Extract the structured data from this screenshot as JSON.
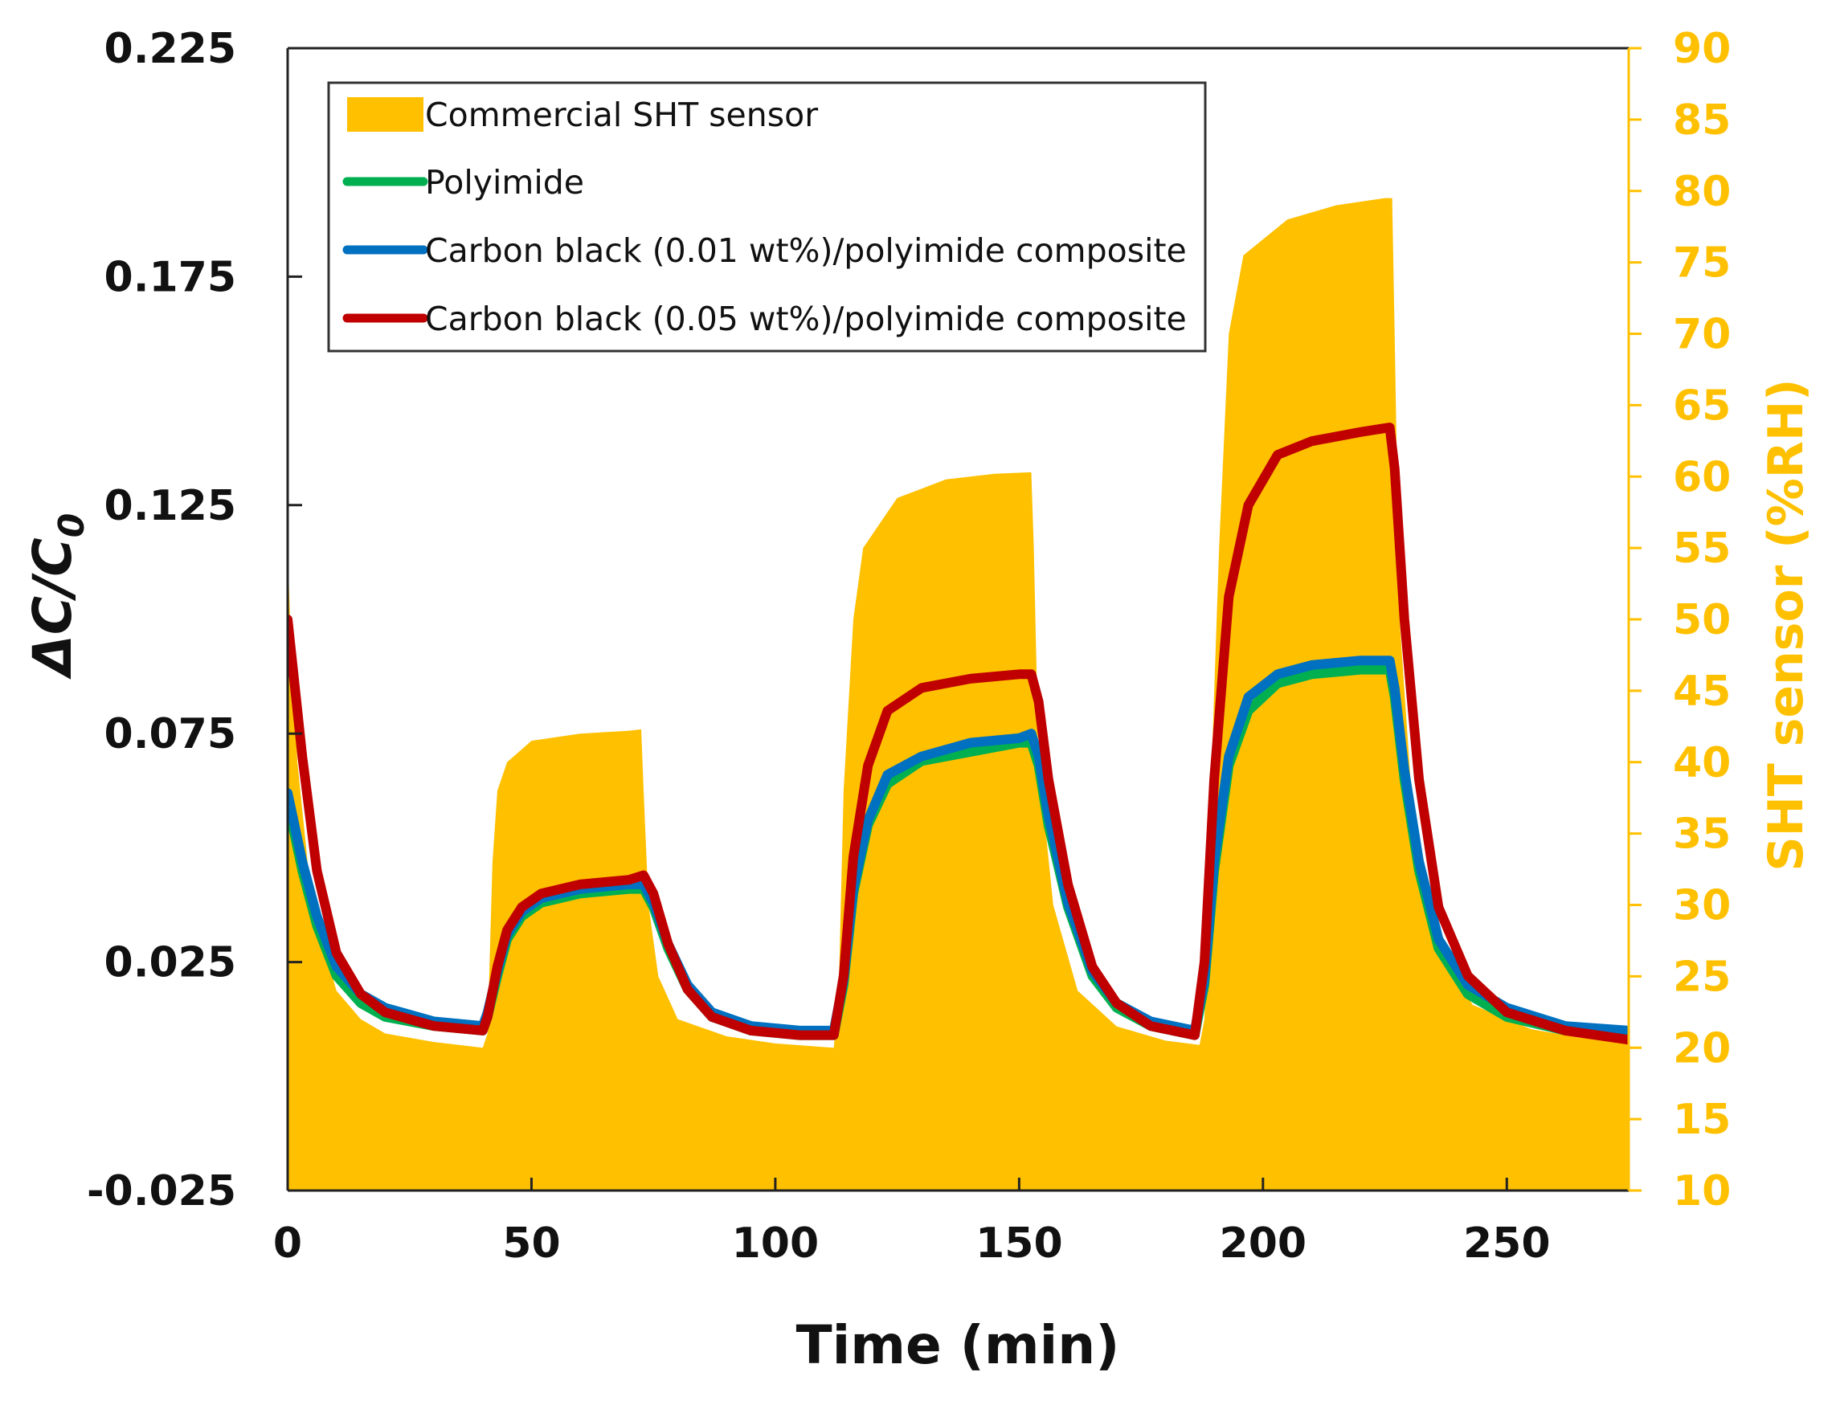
{
  "chart_data": {
    "type": "line+area",
    "xlabel": "Time (min)",
    "ylabel": "ΔC/C0",
    "ylabel_parts": {
      "delta": "Δ",
      "c": "C",
      "slash": "/",
      "c0": "C",
      "sub": "0"
    },
    "y2label": "SHT sensor (%RH)",
    "xlim": [
      0,
      275
    ],
    "ylim": [
      -0.025,
      0.225
    ],
    "y2lim": [
      10,
      90
    ],
    "xticks": [
      0,
      50,
      100,
      150,
      200,
      250
    ],
    "xtick_labels": [
      "0",
      "50",
      "100",
      "150",
      "200",
      "250"
    ],
    "yticks": [
      -0.025,
      0.025,
      0.075,
      0.125,
      0.175,
      0.225
    ],
    "ytick_labels": [
      "-0.025",
      "0.025",
      "0.075",
      "0.125",
      "0.175",
      "0.225"
    ],
    "y2ticks": [
      10,
      15,
      20,
      25,
      30,
      35,
      40,
      45,
      50,
      55,
      60,
      65,
      70,
      75,
      80,
      85,
      90
    ],
    "y2tick_labels": [
      "10",
      "15",
      "20",
      "25",
      "30",
      "35",
      "40",
      "45",
      "50",
      "55",
      "60",
      "65",
      "70",
      "75",
      "80",
      "85",
      "90"
    ],
    "legend_position": "top-left",
    "series": [
      {
        "name": "Commercial SHT sensor",
        "color": "#FFC000",
        "axis": "right",
        "kind": "area",
        "points": [
          [
            0,
            55
          ],
          [
            0.5,
            50
          ],
          [
            2,
            40
          ],
          [
            5,
            30
          ],
          [
            10,
            24
          ],
          [
            15,
            22
          ],
          [
            20,
            21
          ],
          [
            30,
            20.4
          ],
          [
            40,
            20
          ],
          [
            41,
            21
          ],
          [
            42,
            33
          ],
          [
            43,
            38
          ],
          [
            45,
            40
          ],
          [
            50,
            41.5
          ],
          [
            60,
            42
          ],
          [
            70,
            42.2
          ],
          [
            72.5,
            42.3
          ],
          [
            73,
            38
          ],
          [
            74,
            30
          ],
          [
            76,
            25
          ],
          [
            80,
            22
          ],
          [
            90,
            20.8
          ],
          [
            100,
            20.3
          ],
          [
            112,
            20
          ],
          [
            113,
            24
          ],
          [
            114,
            38
          ],
          [
            116,
            50
          ],
          [
            118,
            55
          ],
          [
            125,
            58.5
          ],
          [
            135,
            59.8
          ],
          [
            145,
            60.2
          ],
          [
            152.5,
            60.3
          ],
          [
            153,
            55
          ],
          [
            154,
            40
          ],
          [
            157,
            30
          ],
          [
            162,
            24
          ],
          [
            170,
            21.5
          ],
          [
            180,
            20.5
          ],
          [
            187,
            20.2
          ],
          [
            188,
            22
          ],
          [
            189,
            35
          ],
          [
            191,
            55
          ],
          [
            193,
            70
          ],
          [
            196,
            75.5
          ],
          [
            205,
            78
          ],
          [
            215,
            79
          ],
          [
            225,
            79.5
          ],
          [
            226.5,
            79.5
          ],
          [
            227,
            70
          ],
          [
            228,
            50
          ],
          [
            231,
            35
          ],
          [
            236,
            27
          ],
          [
            243,
            23
          ],
          [
            255,
            21.3
          ],
          [
            265,
            20.7
          ],
          [
            275,
            20.5
          ]
        ]
      },
      {
        "name": "Polyimide",
        "color": "#00B050",
        "axis": "left",
        "kind": "line",
        "points": [
          [
            0,
            0.06
          ],
          [
            1,
            0.055
          ],
          [
            3,
            0.045
          ],
          [
            6,
            0.033
          ],
          [
            10,
            0.022
          ],
          [
            15,
            0.016
          ],
          [
            20,
            0.013
          ],
          [
            30,
            0.011
          ],
          [
            40,
            0.01
          ],
          [
            41,
            0.013
          ],
          [
            43,
            0.022
          ],
          [
            45,
            0.03
          ],
          [
            48,
            0.035
          ],
          [
            52,
            0.038
          ],
          [
            60,
            0.04
          ],
          [
            70,
            0.041
          ],
          [
            73,
            0.041
          ],
          [
            75,
            0.037
          ],
          [
            78,
            0.028
          ],
          [
            82,
            0.019
          ],
          [
            87,
            0.013
          ],
          [
            95,
            0.01
          ],
          [
            105,
            0.009
          ],
          [
            112,
            0.009
          ],
          [
            114,
            0.02
          ],
          [
            116,
            0.04
          ],
          [
            119,
            0.055
          ],
          [
            123,
            0.064
          ],
          [
            130,
            0.069
          ],
          [
            140,
            0.071
          ],
          [
            150,
            0.073
          ],
          [
            152.5,
            0.073
          ],
          [
            154,
            0.068
          ],
          [
            156,
            0.055
          ],
          [
            160,
            0.037
          ],
          [
            165,
            0.022
          ],
          [
            170,
            0.015
          ],
          [
            177,
            0.011
          ],
          [
            186,
            0.009
          ],
          [
            188,
            0.02
          ],
          [
            190,
            0.045
          ],
          [
            193,
            0.068
          ],
          [
            197,
            0.08
          ],
          [
            203,
            0.086
          ],
          [
            210,
            0.088
          ],
          [
            220,
            0.089
          ],
          [
            226,
            0.089
          ],
          [
            227,
            0.083
          ],
          [
            229,
            0.065
          ],
          [
            232,
            0.045
          ],
          [
            236,
            0.028
          ],
          [
            242,
            0.018
          ],
          [
            250,
            0.013
          ],
          [
            262,
            0.01
          ],
          [
            275,
            0.009
          ]
        ]
      },
      {
        "name": "Carbon black (0.01 wt%)/polyimide composite",
        "color": "#0070C0",
        "axis": "left",
        "kind": "line",
        "points": [
          [
            0,
            0.062
          ],
          [
            1,
            0.057
          ],
          [
            3,
            0.047
          ],
          [
            6,
            0.035
          ],
          [
            10,
            0.024
          ],
          [
            15,
            0.018
          ],
          [
            20,
            0.015
          ],
          [
            30,
            0.012
          ],
          [
            40,
            0.011
          ],
          [
            41,
            0.014
          ],
          [
            43,
            0.023
          ],
          [
            45,
            0.031
          ],
          [
            48,
            0.036
          ],
          [
            52,
            0.039
          ],
          [
            60,
            0.041
          ],
          [
            70,
            0.042
          ],
          [
            73,
            0.042
          ],
          [
            75,
            0.038
          ],
          [
            78,
            0.029
          ],
          [
            82,
            0.02
          ],
          [
            87,
            0.014
          ],
          [
            95,
            0.011
          ],
          [
            105,
            0.01
          ],
          [
            112,
            0.01
          ],
          [
            114,
            0.021
          ],
          [
            116,
            0.041
          ],
          [
            119,
            0.056
          ],
          [
            123,
            0.066
          ],
          [
            130,
            0.07
          ],
          [
            140,
            0.073
          ],
          [
            150,
            0.074
          ],
          [
            152.5,
            0.075
          ],
          [
            154,
            0.07
          ],
          [
            156,
            0.057
          ],
          [
            160,
            0.038
          ],
          [
            165,
            0.023
          ],
          [
            170,
            0.016
          ],
          [
            177,
            0.012
          ],
          [
            186,
            0.01
          ],
          [
            188,
            0.021
          ],
          [
            190,
            0.047
          ],
          [
            193,
            0.07
          ],
          [
            197,
            0.083
          ],
          [
            203,
            0.088
          ],
          [
            210,
            0.09
          ],
          [
            220,
            0.091
          ],
          [
            226,
            0.091
          ],
          [
            227,
            0.085
          ],
          [
            229,
            0.067
          ],
          [
            232,
            0.047
          ],
          [
            236,
            0.03
          ],
          [
            242,
            0.02
          ],
          [
            250,
            0.015
          ],
          [
            262,
            0.011
          ],
          [
            275,
            0.01
          ]
        ]
      },
      {
        "name": "Carbon black (0.05 wt%)/polyimide composite",
        "color": "#C00000",
        "axis": "left",
        "kind": "line",
        "points": [
          [
            0,
            0.1
          ],
          [
            1,
            0.09
          ],
          [
            3,
            0.07
          ],
          [
            6,
            0.045
          ],
          [
            10,
            0.027
          ],
          [
            15,
            0.018
          ],
          [
            20,
            0.014
          ],
          [
            30,
            0.011
          ],
          [
            40,
            0.01
          ],
          [
            41,
            0.013
          ],
          [
            43,
            0.024
          ],
          [
            45,
            0.032
          ],
          [
            48,
            0.037
          ],
          [
            52,
            0.04
          ],
          [
            60,
            0.042
          ],
          [
            70,
            0.043
          ],
          [
            73,
            0.044
          ],
          [
            75,
            0.04
          ],
          [
            78,
            0.029
          ],
          [
            82,
            0.019
          ],
          [
            87,
            0.013
          ],
          [
            95,
            0.01
          ],
          [
            105,
            0.009
          ],
          [
            112,
            0.009
          ],
          [
            114,
            0.022
          ],
          [
            116,
            0.048
          ],
          [
            119,
            0.068
          ],
          [
            123,
            0.08
          ],
          [
            130,
            0.085
          ],
          [
            140,
            0.087
          ],
          [
            150,
            0.088
          ],
          [
            152.5,
            0.088
          ],
          [
            154,
            0.082
          ],
          [
            156,
            0.065
          ],
          [
            160,
            0.042
          ],
          [
            165,
            0.024
          ],
          [
            170,
            0.016
          ],
          [
            177,
            0.011
          ],
          [
            186,
            0.009
          ],
          [
            188,
            0.025
          ],
          [
            190,
            0.065
          ],
          [
            193,
            0.105
          ],
          [
            197,
            0.125
          ],
          [
            203,
            0.136
          ],
          [
            210,
            0.139
          ],
          [
            220,
            0.141
          ],
          [
            226,
            0.142
          ],
          [
            227,
            0.133
          ],
          [
            229,
            0.1
          ],
          [
            232,
            0.065
          ],
          [
            236,
            0.037
          ],
          [
            242,
            0.022
          ],
          [
            250,
            0.014
          ],
          [
            262,
            0.01
          ],
          [
            275,
            0.008
          ]
        ]
      }
    ]
  }
}
